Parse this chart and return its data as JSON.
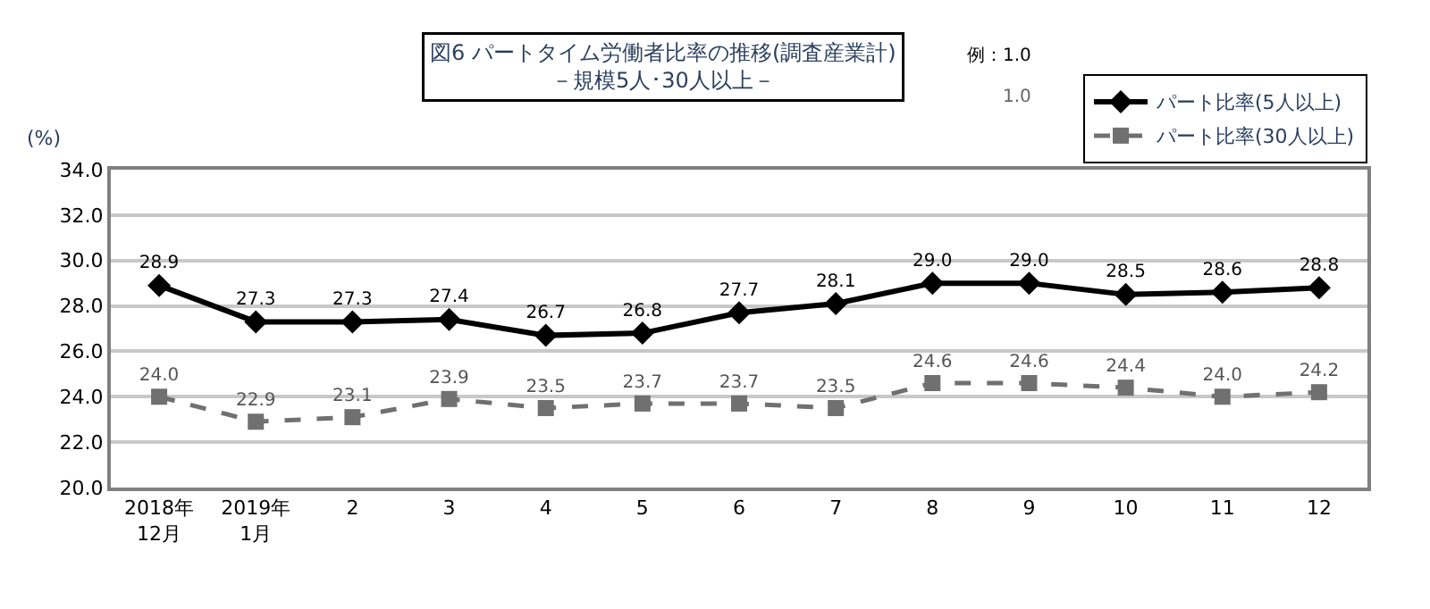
{
  "chart_data": {
    "type": "line",
    "title": "図6 パートタイム労働者比率の推移(調査産業計)",
    "subtitle": "－規模5人･30人以上－",
    "ylabel": "(%)",
    "categories": [
      "2018年\n12月",
      "2019年\n1月",
      "2",
      "3",
      "4",
      "5",
      "6",
      "7",
      "8",
      "9",
      "10",
      "11",
      "12"
    ],
    "series": [
      {
        "name": "パート比率(5人以上)",
        "color": "#000000",
        "marker": "diamond",
        "line_style": "solid",
        "values": [
          28.9,
          27.3,
          27.3,
          27.4,
          26.7,
          26.8,
          27.7,
          28.1,
          29.0,
          29.0,
          28.5,
          28.6,
          28.8
        ],
        "value_labels": [
          "28.9",
          "27.3",
          "27.3",
          "27.4",
          "26.7",
          "26.8",
          "27.7",
          "28.1",
          "29.0",
          "29.0",
          "28.5",
          "28.6",
          "28.8"
        ]
      },
      {
        "name": "パート比率(30人以上)",
        "color": "#707070",
        "marker": "square",
        "line_style": "dashed",
        "values": [
          24.0,
          22.9,
          23.1,
          23.9,
          23.5,
          23.7,
          23.7,
          23.5,
          24.6,
          24.6,
          24.4,
          24.0,
          24.2
        ],
        "value_labels": [
          "24.0",
          "22.9",
          "23.1",
          "23.9",
          "23.5",
          "23.7",
          "23.7",
          "23.5",
          "24.6",
          "24.6",
          "24.4",
          "24.0",
          "24.2"
        ]
      }
    ],
    "ylim": [
      20,
      34
    ],
    "yticks": [
      {
        "value": 20,
        "label": "20.0"
      },
      {
        "value": 22,
        "label": "22.0"
      },
      {
        "value": 24,
        "label": "24.0"
      },
      {
        "value": 26,
        "label": "26.0"
      },
      {
        "value": 28,
        "label": "28.0"
      },
      {
        "value": 30,
        "label": "30.0"
      },
      {
        "value": 32,
        "label": "32.0"
      },
      {
        "value": 34,
        "label": "34.0"
      }
    ],
    "grid": "y",
    "legend": "top right",
    "annotations": [
      "例：1.0",
      "1.0"
    ]
  }
}
